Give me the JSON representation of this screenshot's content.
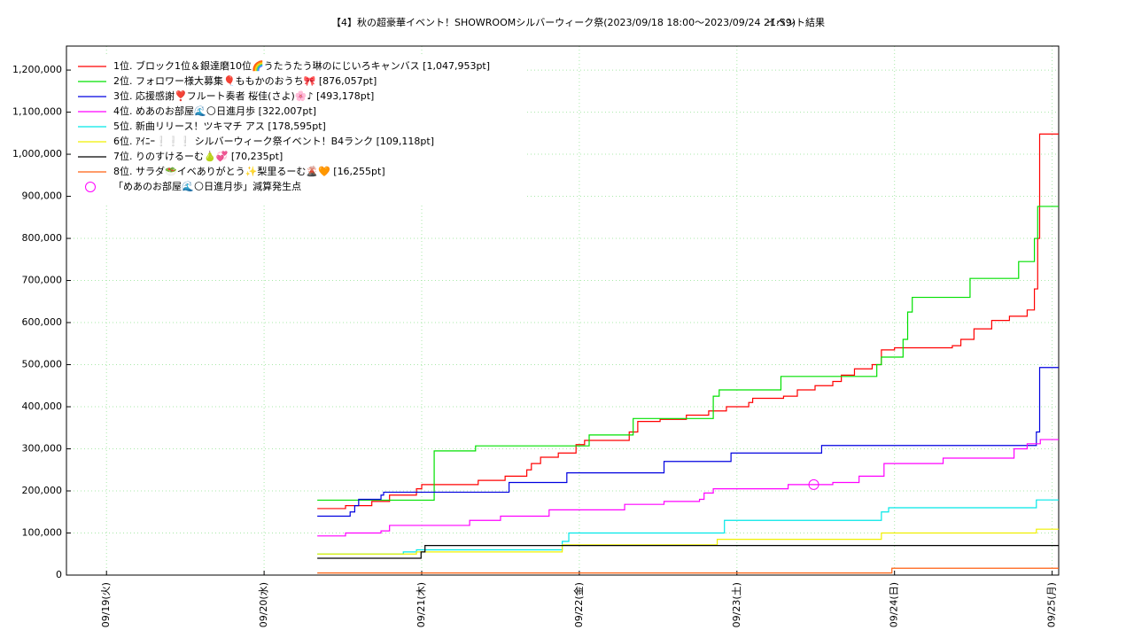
{
  "chart_data": {
    "type": "line",
    "step": true,
    "title": "【4】秋の超豪華イベント！SHOWROOMシルバーウィーク祭(2023/09/18 18:00～2023/09/24 21:59)",
    "subtitle": "イベント結果",
    "xlim": [
      17.9,
      169.0
    ],
    "xticks": [
      {
        "value": 24,
        "label": "09/19(火)"
      },
      {
        "value": 48,
        "label": "09/20(水)"
      },
      {
        "value": 72,
        "label": "09/21(木)"
      },
      {
        "value": 96,
        "label": "09/22(金)"
      },
      {
        "value": 120,
        "label": "09/23(土)"
      },
      {
        "value": 144,
        "label": "09/24(日)"
      },
      {
        "value": 168,
        "label": "09/25(月)"
      }
    ],
    "ylim": [
      0,
      1257000
    ],
    "yticks": [
      0,
      {
        "value": 100000,
        "label": "100,000"
      },
      {
        "value": 200000,
        "label": "200,000"
      },
      {
        "value": 300000,
        "label": "300,000"
      },
      {
        "value": 400000,
        "label": "400,000"
      },
      {
        "value": 500000,
        "label": "500,000"
      },
      {
        "value": 600000,
        "label": "600,000"
      },
      {
        "value": 700000,
        "label": "700,000"
      },
      {
        "value": 800000,
        "label": "800,000"
      },
      {
        "value": 900000,
        "label": "900,000"
      },
      {
        "value": 1000000,
        "label": "1,000,000"
      },
      {
        "value": 1100000,
        "label": "1,100,000"
      },
      {
        "value": 1200000,
        "label": "1,200,000"
      }
    ],
    "grid": true,
    "legend": "upper left",
    "series": [
      {
        "name": "1位. ブロック1位＆銀達磨10位🌈うたうたう琳のにじいろキャンバス [1,047,953pt]",
        "color": "#ff0000",
        "x": [
          56.1,
          60.4,
          64.4,
          67.1,
          71.2,
          72.0,
          77.9,
          80.6,
          84.7,
          88.0,
          88.7,
          90.1,
          92.8,
          95.5,
          96.8,
          102.9,
          103.6,
          104.9,
          108.3,
          112.3,
          115.7,
          118.4,
          121.8,
          122.4,
          127.1,
          129.2,
          131.9,
          134.6,
          135.9,
          137.9,
          140.6,
          142.0,
          144.0,
          152.8,
          154.1,
          156.1,
          158.8,
          161.5,
          164.2,
          165.3,
          165.8,
          166.1,
          169.0
        ],
        "values": [
          158000,
          165000,
          175000,
          190000,
          205000,
          215000,
          215000,
          225000,
          235000,
          250000,
          265000,
          280000,
          290000,
          310000,
          320000,
          320000,
          340000,
          365000,
          370000,
          380000,
          390000,
          400000,
          410000,
          420000,
          425000,
          440000,
          450000,
          460000,
          475000,
          490000,
          500000,
          535000,
          540000,
          545000,
          560000,
          585000,
          605000,
          615000,
          630000,
          680000,
          800000,
          1047953,
          1047953
        ]
      },
      {
        "name": "2位. フォロワー様大募集🎈ももかのおうち🎀 [876,057pt]",
        "color": "#00e000",
        "x": [
          56.1,
          73.9,
          80.2,
          97.5,
          104.2,
          116.4,
          117.3,
          126.7,
          141.3,
          142.0,
          145.3,
          146.0,
          146.7,
          155.5,
          162.9,
          165.3,
          165.8,
          169.0
        ],
        "values": [
          178000,
          295000,
          307000,
          333000,
          372000,
          425000,
          440000,
          472000,
          500000,
          518000,
          560000,
          625000,
          660000,
          705000,
          745000,
          800000,
          876057,
          876057
        ]
      },
      {
        "name": "3位. 応援感謝❣️フルート奏者 桜佳(さよ)🌸♪ [493,178pt]",
        "color": "#0000e0",
        "x": [
          56.1,
          61.1,
          61.8,
          62.4,
          65.8,
          66.2,
          85.3,
          94.1,
          108.9,
          119.1,
          132.9,
          165.6,
          166.1,
          169.0
        ],
        "values": [
          140000,
          150000,
          165000,
          180000,
          190000,
          197000,
          220000,
          243000,
          270000,
          290000,
          308000,
          340000,
          493178,
          493178
        ]
      },
      {
        "name": "4位. めあのお部屋🌊🌕日進月歩 [322,007pt]",
        "color": "#ff00ff",
        "x": [
          56.1,
          60.4,
          65.8,
          67.1,
          79.3,
          84.0,
          91.4,
          102.9,
          108.9,
          114.3,
          115.0,
          116.4,
          127.8,
          134.6,
          138.6,
          142.4,
          151.4,
          162.2,
          164.2,
          166.2,
          169.0
        ],
        "values": [
          93000,
          100000,
          105000,
          118000,
          130000,
          140000,
          155000,
          168000,
          175000,
          180000,
          195000,
          205000,
          215000,
          220000,
          235000,
          265000,
          278000,
          300000,
          312000,
          322007,
          322007
        ]
      },
      {
        "name": "5位. 新曲リリース！ツキマチ アス [178,595pt]",
        "color": "#00e8e8",
        "x": [
          56.1,
          69.2,
          71.2,
          93.4,
          94.4,
          118.1,
          142.0,
          143.1,
          165.6,
          169.0
        ],
        "values": [
          50000,
          55000,
          60000,
          80000,
          100000,
          130000,
          150000,
          160000,
          178595,
          178595
        ]
      },
      {
        "name": "6位. ｱｲﾆｰ❕❕❕ シルバーウィーク祭イベント！B4ランク [109,118pt]",
        "color": "#f0f000",
        "x": [
          56.1,
          71.2,
          93.4,
          117.0,
          142.0,
          165.6,
          169.0
        ],
        "values": [
          50000,
          55000,
          72000,
          85000,
          100000,
          109118,
          109118
        ]
      },
      {
        "name": "7位. りのすけるーむ🍐💞 [70,235pt]",
        "color": "#000000",
        "x": [
          56.1,
          71.9,
          72.5,
          169.0
        ],
        "values": [
          40000,
          55000,
          70235,
          70235
        ]
      },
      {
        "name": "8位. サラダ🥗イベありがとう✨梨里るーむ🌋🧡 [16,255pt]",
        "color": "#ff6010",
        "x": [
          56.1,
          143.6,
          169.0
        ],
        "values": [
          5000,
          16255,
          16255
        ]
      },
      {
        "name": "「めあのお部屋🌊🌕日進月歩」減算発生点",
        "color": "#ff00ff",
        "style": "marker",
        "x": [
          131.7
        ],
        "values": [
          215000
        ]
      }
    ]
  }
}
